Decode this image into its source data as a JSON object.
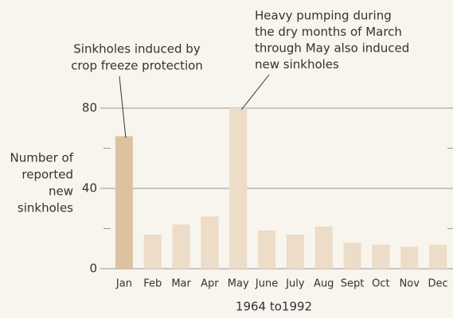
{
  "chart_data": {
    "type": "bar",
    "categories": [
      "Jan",
      "Feb",
      "Mar",
      "Apr",
      "May",
      "June",
      "July",
      "Aug",
      "Sept",
      "Oct",
      "Nov",
      "Dec"
    ],
    "values": [
      66,
      17,
      22,
      26,
      80,
      19,
      17,
      21,
      13,
      12,
      11,
      12
    ],
    "colors": [
      "#dcc29f",
      "#ecdcc8",
      "#ecdcc8",
      "#ecdcc8",
      "#ecdcc8",
      "#ecdcc8",
      "#ecdcc8",
      "#ecdcc8",
      "#ecdcc8",
      "#ecdcc8",
      "#ecdcc8",
      "#ecdcc8"
    ],
    "ylim": [
      0,
      80
    ],
    "yticks": [
      0,
      40,
      80
    ],
    "minor_yticks": [
      20,
      60
    ],
    "grid": true,
    "y_label": [
      "Number of",
      "reported",
      "new",
      "sinkholes"
    ],
    "x_label": "1964 to1992",
    "annotations": [
      {
        "lines": [
          "Sinkholes induced by",
          "crop freeze protection"
        ],
        "category": 0
      },
      {
        "lines": [
          "Heavy pumping during",
          "the dry months of March",
          "through May also induced",
          "new sinkholes"
        ],
        "category": 4
      }
    ]
  }
}
